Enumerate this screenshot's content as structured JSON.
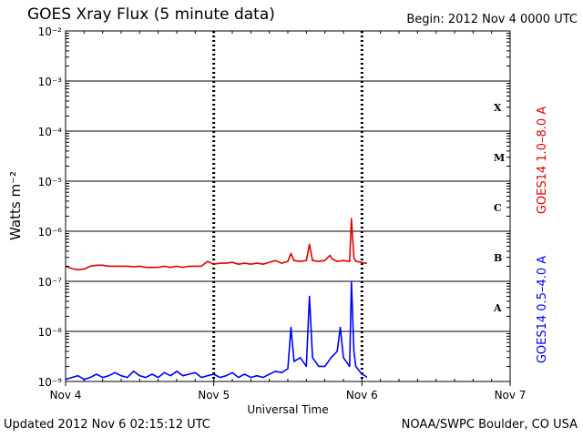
{
  "header": {
    "title": "GOES Xray Flux (5 minute data)",
    "begin": "Begin:  2012 Nov 4 0000 UTC"
  },
  "footer": {
    "updated": "Updated 2012 Nov  6 02:15:12 UTC",
    "credit": "NOAA/SWPC Boulder, CO USA"
  },
  "colors": {
    "long_channel": "#e00000",
    "short_channel": "#0000ff",
    "grid": "#000000"
  },
  "chart_data": {
    "type": "line",
    "title": "GOES Xray Flux (5 minute data)",
    "ylabel": "Watts m⁻²",
    "xlabel": "Universal Time",
    "yscale": "log",
    "ylim": [
      1e-09,
      0.01
    ],
    "xlim_hours": [
      0,
      72
    ],
    "y_ticks": [
      {
        "value": 0.01,
        "label": "10⁻²"
      },
      {
        "value": 0.001,
        "label": "10⁻³"
      },
      {
        "value": 0.0001,
        "label": "10⁻⁴"
      },
      {
        "value": 1e-05,
        "label": "10⁻⁵"
      },
      {
        "value": 1e-06,
        "label": "10⁻⁶"
      },
      {
        "value": 1e-07,
        "label": "10⁻⁷"
      },
      {
        "value": 1e-08,
        "label": "10⁻⁸"
      },
      {
        "value": 1e-09,
        "label": "10⁻⁹"
      }
    ],
    "x_ticks": [
      {
        "hour": 0,
        "label": "Nov 4"
      },
      {
        "hour": 24,
        "label": "Nov 5"
      },
      {
        "hour": 48,
        "label": "Nov 6"
      },
      {
        "hour": 72,
        "label": "Nov 7"
      }
    ],
    "flare_classes": [
      {
        "label": "X",
        "value": 0.0003
      },
      {
        "label": "M",
        "value": 3e-05
      },
      {
        "label": "C",
        "value": 3e-06
      },
      {
        "label": "B",
        "value": 3e-07
      },
      {
        "label": "A",
        "value": 3e-08
      }
    ],
    "grid": true,
    "series": [
      {
        "name": "GOES14 1.0–8.0 A",
        "x_hours": [
          0,
          1,
          2,
          3,
          4,
          5,
          6,
          7,
          8,
          9,
          10,
          11,
          12,
          13,
          14,
          15,
          16,
          17,
          18,
          19,
          20,
          21,
          22,
          23,
          24,
          25,
          26,
          27,
          28,
          29,
          30,
          31,
          32,
          33,
          34,
          35,
          36,
          36.5,
          37,
          38,
          39,
          39.5,
          40,
          41,
          42,
          42.8,
          43.2,
          44,
          45,
          46,
          46.3,
          46.7,
          47,
          48,
          48.5,
          48.8
        ],
        "values": [
          2e-07,
          1.8e-07,
          1.7e-07,
          1.75e-07,
          2e-07,
          2.1e-07,
          2.1e-07,
          2e-07,
          2e-07,
          2e-07,
          2e-07,
          1.95e-07,
          2e-07,
          1.9e-07,
          1.9e-07,
          1.9e-07,
          2e-07,
          1.9e-07,
          2e-07,
          1.9e-07,
          2e-07,
          2e-07,
          2e-07,
          2.5e-07,
          2.2e-07,
          2.3e-07,
          2.3e-07,
          2.4e-07,
          2.2e-07,
          2.3e-07,
          2.2e-07,
          2.3e-07,
          2.2e-07,
          2.4e-07,
          2.6e-07,
          2.3e-07,
          2.5e-07,
          3.6e-07,
          2.6e-07,
          2.5e-07,
          2.6e-07,
          5.5e-07,
          2.6e-07,
          2.5e-07,
          2.6e-07,
          3.3e-07,
          2.8e-07,
          2.5e-07,
          2.6e-07,
          2.5e-07,
          1.8e-06,
          3e-07,
          2.5e-07,
          2.4e-07,
          2.3e-07,
          2.3e-07
        ]
      },
      {
        "name": "GOES14 0.5–4.0 A",
        "x_hours": [
          0,
          1,
          2,
          3,
          4,
          5,
          6,
          7,
          8,
          9,
          10,
          11,
          12,
          13,
          14,
          15,
          16,
          17,
          18,
          19,
          20,
          21,
          22,
          23,
          24,
          25,
          26,
          27,
          28,
          29,
          30,
          31,
          32,
          33,
          34,
          35,
          36,
          36.5,
          37,
          38,
          39,
          39.5,
          40,
          41,
          42,
          43,
          44,
          44.5,
          45,
          46,
          46.3,
          46.7,
          47,
          48,
          48.5,
          48.8
        ],
        "values": [
          1.1e-09,
          1.2e-09,
          1.3e-09,
          1.1e-09,
          1.2e-09,
          1.4e-09,
          1.2e-09,
          1.3e-09,
          1.5e-09,
          1.3e-09,
          1.2e-09,
          1.6e-09,
          1.3e-09,
          1.2e-09,
          1.4e-09,
          1.2e-09,
          1.5e-09,
          1.3e-09,
          1.6e-09,
          1.3e-09,
          1.4e-09,
          1.5e-09,
          1.2e-09,
          1.3e-09,
          1.4e-09,
          1.2e-09,
          1.3e-09,
          1.5e-09,
          1.2e-09,
          1.4e-09,
          1.2e-09,
          1.3e-09,
          1.2e-09,
          1.4e-09,
          1.6e-09,
          1.5e-09,
          1.8e-09,
          1.2e-08,
          2.5e-09,
          3e-09,
          2e-09,
          5e-08,
          3e-09,
          2e-09,
          2e-09,
          3e-09,
          4e-09,
          1.2e-08,
          3e-09,
          2e-09,
          1e-07,
          4e-09,
          2e-09,
          1.4e-09,
          1.3e-09,
          1.2e-09
        ]
      }
    ]
  }
}
